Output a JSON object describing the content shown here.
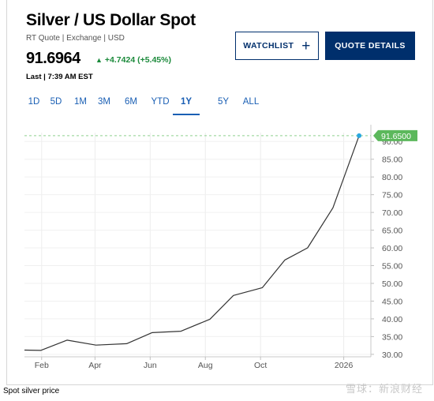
{
  "header": {
    "title": "Silver / US Dollar Spot",
    "subtitle": "RT Quote | Exchange | USD",
    "price": "91.6964",
    "change": "+4.7424 (+5.45%)",
    "last": "Last | 7:39 AM EST"
  },
  "buttons": {
    "watchlist_label": "WATCHLIST",
    "quote_details_label": "QUOTE DETAILS"
  },
  "tabs": [
    {
      "label": "1D",
      "active": false
    },
    {
      "label": "5D",
      "active": false
    },
    {
      "label": "1M",
      "active": false
    },
    {
      "label": "3M",
      "active": false
    },
    {
      "label": "6M",
      "active": false
    },
    {
      "label": "YTD",
      "active": false
    },
    {
      "label": "1Y",
      "active": true
    },
    {
      "label": "5Y",
      "active": false
    },
    {
      "label": "ALL",
      "active": false
    }
  ],
  "colors": {
    "accent": "#002f6c",
    "positive": "#1b8a3b",
    "price_tag": "#5cb85c",
    "reference_line": "#8fd18f"
  },
  "chart_data": {
    "type": "line",
    "title": "",
    "xlabel": "",
    "ylabel": "",
    "x_ticks": [
      "Feb",
      "Apr",
      "Jun",
      "Aug",
      "Oct",
      "2026"
    ],
    "y_ticks": [
      "30.00",
      "35.00",
      "40.00",
      "45.00",
      "50.00",
      "55.00",
      "60.00",
      "65.00",
      "70.00",
      "75.00",
      "80.00",
      "85.00",
      "90.00"
    ],
    "ylim": [
      29.3,
      92.5
    ],
    "xlim": [
      "2025-01-13",
      "2026-01-31"
    ],
    "series": [
      {
        "x": [
          "2025-01-13",
          "2025-01-31",
          "2025-03-01",
          "2025-04-02",
          "2025-05-06",
          "2025-06-03",
          "2025-07-05",
          "2025-08-06",
          "2025-09-01",
          "2025-10-03",
          "2025-10-28",
          "2025-11-22",
          "2025-12-20",
          "2026-01-18"
        ],
        "values": [
          31.2,
          31.1,
          34.0,
          32.6,
          33.0,
          36.1,
          36.5,
          39.9,
          46.6,
          48.8,
          56.6,
          60.0,
          71.3,
          91.65
        ]
      }
    ],
    "last_value_label": "91.6500",
    "grid": true,
    "legend": "none"
  },
  "caption": "Spot silver price",
  "watermark": "雪球：新浪财经"
}
